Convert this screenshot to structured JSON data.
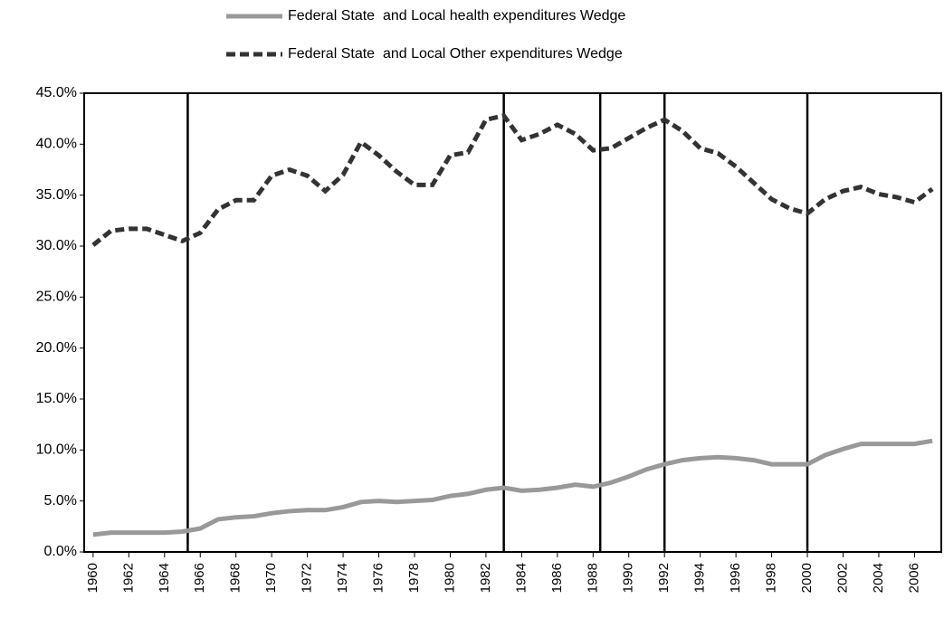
{
  "chart_data": {
    "type": "line",
    "x": [
      1960,
      1961,
      1962,
      1963,
      1964,
      1965,
      1966,
      1967,
      1968,
      1969,
      1970,
      1971,
      1972,
      1973,
      1974,
      1975,
      1976,
      1977,
      1978,
      1979,
      1980,
      1981,
      1982,
      1983,
      1984,
      1985,
      1986,
      1987,
      1988,
      1989,
      1990,
      1991,
      1992,
      1993,
      1994,
      1995,
      1996,
      1997,
      1998,
      1999,
      2000,
      2001,
      2002,
      2003,
      2004,
      2005,
      2006,
      2007
    ],
    "series": [
      {
        "name": "Federal State  and Local health expenditures Wedge",
        "color": "#999999",
        "dash": false,
        "values": [
          1.7,
          1.9,
          1.9,
          1.9,
          1.9,
          2.0,
          2.3,
          3.2,
          3.4,
          3.5,
          3.8,
          4.0,
          4.1,
          4.1,
          4.4,
          4.9,
          5.0,
          4.9,
          5.0,
          5.1,
          5.5,
          5.7,
          6.1,
          6.3,
          6.0,
          6.1,
          6.3,
          6.6,
          6.4,
          6.8,
          7.4,
          8.1,
          8.6,
          9.0,
          9.2,
          9.3,
          9.2,
          9.0,
          8.6,
          8.6,
          8.6,
          9.5,
          10.1,
          10.6,
          10.6,
          10.6,
          10.6,
          10.9
        ]
      },
      {
        "name": "Federal State  and Local Other expenditures Wedge",
        "color": "#333333",
        "dash": true,
        "values": [
          30.1,
          31.5,
          31.7,
          31.7,
          31.1,
          30.5,
          31.3,
          33.6,
          34.5,
          34.5,
          36.9,
          37.5,
          36.9,
          35.4,
          37.0,
          40.2,
          38.9,
          37.3,
          36.0,
          36.0,
          38.9,
          39.2,
          42.4,
          42.8,
          40.4,
          41.0,
          41.9,
          41.0,
          39.4,
          39.6,
          40.6,
          41.6,
          42.4,
          41.3,
          39.6,
          39.1,
          37.8,
          36.2,
          34.6,
          33.7,
          33.2,
          34.6,
          35.4,
          35.8,
          35.1,
          34.8,
          34.3,
          35.6
        ]
      }
    ],
    "xlim": [
      1959.5,
      2007.5
    ],
    "xticks": [
      1960,
      1962,
      1964,
      1966,
      1968,
      1970,
      1972,
      1974,
      1976,
      1978,
      1980,
      1982,
      1984,
      1986,
      1988,
      1990,
      1992,
      1994,
      1996,
      1998,
      2000,
      2002,
      2004,
      2006
    ],
    "ylim": [
      0,
      45
    ],
    "yticks": [
      {
        "value": 0,
        "label": "0.0%"
      },
      {
        "value": 5,
        "label": "5.0%"
      },
      {
        "value": 10,
        "label": "10.0%"
      },
      {
        "value": 15,
        "label": "15.0%"
      },
      {
        "value": 20,
        "label": "20.0%"
      },
      {
        "value": 25,
        "label": "25.0%"
      },
      {
        "value": 30,
        "label": "30.0%"
      },
      {
        "value": 35,
        "label": "35.0%"
      },
      {
        "value": 40,
        "label": "40.0%"
      },
      {
        "value": 45,
        "label": "45.0%"
      }
    ],
    "reference_lines": [
      1965.3,
      1983,
      1988.4,
      1992,
      2000
    ],
    "legend": "top"
  }
}
